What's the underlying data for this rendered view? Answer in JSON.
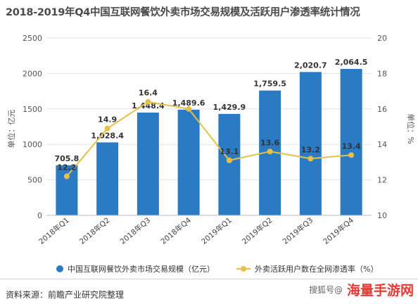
{
  "title": "2018-2019年Q4中国互联网餐饮外卖市场交易规模及活跃用户渗透率统计情况",
  "chart_data": {
    "type": "bar",
    "categories": [
      "2018年Q1",
      "2018年Q2",
      "2018年Q3",
      "2018年Q4",
      "2019年Q1",
      "2019年Q2",
      "2019年Q3",
      "2019年Q4"
    ],
    "series": [
      {
        "name": "中国互联网餐饮外卖市场交易规模（亿元）",
        "type": "bar",
        "axis": "left",
        "values": [
          705.8,
          1028.4,
          1448.4,
          1489.6,
          1429.9,
          1759.5,
          2020.7,
          2064.5
        ],
        "labels": [
          "705.8",
          "1,028.4",
          "1,448.4",
          "1,489.6",
          "1,429.9",
          "1,759.5",
          "2,020.7",
          "2,064.5"
        ]
      },
      {
        "name": "外卖活跃用户数在全网渗透率（%）",
        "type": "line",
        "axis": "right",
        "values": [
          12.2,
          14.9,
          16.4,
          16.0,
          13.1,
          13.6,
          13.2,
          13.4
        ],
        "labels": [
          "12.2",
          "14.9",
          "16.4",
          "",
          "13.1",
          "13.6",
          "13.2",
          "13.4"
        ]
      }
    ],
    "ylabel": "单位：亿元",
    "y2label": "单位：%",
    "ylim": [
      0,
      2500
    ],
    "y2lim": [
      10,
      20
    ],
    "yticks": [
      "0",
      "500",
      "1000",
      "1500",
      "2000",
      "2500"
    ],
    "y2ticks": [
      "10",
      "12",
      "14",
      "16",
      "18",
      "20"
    ],
    "grid": true,
    "legend_position": "bottom",
    "colors": {
      "bar": "#2b7bc4",
      "line": "#e6c14a"
    }
  },
  "legend": {
    "bar_label": "中国互联网餐饮外卖市场交易规模（亿元）",
    "line_label": "外卖活跃用户数在全网渗透率（%）"
  },
  "source": "资料来源：前瞻产业研究院整理",
  "watermark": {
    "search_text": "搜狐号@",
    "brand_text": "海量手游网"
  }
}
